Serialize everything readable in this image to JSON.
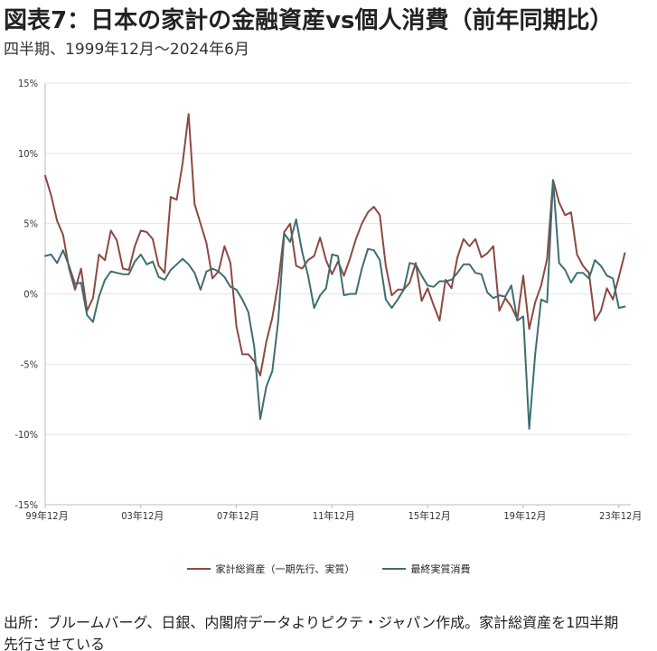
{
  "title": "図表7：日本の家計の金融資産vs個人消費（前年同期比）",
  "subtitle": "四半期、1999年12月～2024年6月",
  "source": "出所：ブルームバーグ、日銀、内閣府データよりピクテ・ジャパン作成。家計総資産を1四半期先行させている",
  "colors": {
    "asset": "#8B4A42",
    "consumption": "#3E6E72",
    "grid": "#e5e5e5"
  },
  "chart_data": {
    "type": "line",
    "x_start": "1999-12",
    "frequency": "quarterly",
    "xtick_labels": [
      "99年12月",
      "03年12月",
      "07年12月",
      "11年12月",
      "15年12月",
      "19年12月",
      "23年12月"
    ],
    "ytick_labels": [
      "15%",
      "10%",
      "5%",
      "0%",
      "-5%",
      "-10%",
      "-15%"
    ],
    "ylim": [
      -15,
      15
    ],
    "yunit": "%",
    "legend_position": "bottom",
    "series": [
      {
        "name": "家計総資産（一期先行、実質）",
        "color": "#8B4A42",
        "values": [
          8.4,
          7.0,
          5.2,
          4.2,
          1.8,
          0.3,
          1.8,
          -1.2,
          -0.3,
          2.8,
          2.4,
          4.5,
          3.8,
          1.8,
          1.7,
          3.4,
          4.5,
          4.4,
          3.9,
          2.0,
          1.5,
          6.9,
          6.7,
          9.3,
          12.8,
          6.4,
          5.0,
          3.6,
          1.1,
          1.6,
          3.4,
          2.2,
          -2.3,
          -4.3,
          -4.3,
          -4.8,
          -5.8,
          -3.4,
          -1.7,
          0.8,
          4.4,
          5.0,
          2.0,
          1.8,
          2.4,
          2.7,
          4.0,
          2.4,
          1.4,
          2.3,
          1.3,
          2.5,
          3.9,
          5.0,
          5.8,
          6.2,
          5.6,
          2.0,
          -0.1,
          0.3,
          0.3,
          0.8,
          2.2,
          -0.5,
          0.4,
          -0.8,
          -1.9,
          1.0,
          0.4,
          2.6,
          3.9,
          3.4,
          3.9,
          2.6,
          2.9,
          3.4,
          -1.2,
          -0.3,
          -0.9,
          -1.8,
          1.3,
          -2.5,
          -0.6,
          0.6,
          2.5,
          8.1,
          6.5,
          5.6,
          5.8,
          2.8,
          2.0,
          1.5,
          -1.9,
          -1.2,
          0.4,
          -0.4,
          1.2,
          2.9
        ]
      },
      {
        "name": "最終実質消費",
        "color": "#3E6E72",
        "values": [
          2.7,
          2.8,
          2.2,
          3.1,
          2.0,
          0.7,
          0.8,
          -1.5,
          -2.0,
          -0.2,
          1.0,
          1.6,
          1.5,
          1.4,
          1.4,
          2.3,
          2.8,
          2.1,
          2.3,
          1.2,
          1.0,
          1.7,
          2.1,
          2.5,
          2.1,
          1.5,
          0.3,
          1.6,
          1.8,
          1.6,
          1.2,
          0.5,
          0.3,
          -0.4,
          -1.3,
          -3.8,
          -8.9,
          -6.6,
          -5.5,
          -1.9,
          4.3,
          3.7,
          5.3,
          3.0,
          1.3,
          -1.0,
          -0.1,
          0.4,
          2.8,
          2.7,
          -0.1,
          0.0,
          0.0,
          1.8,
          3.2,
          3.1,
          2.4,
          -0.4,
          -1.0,
          -0.4,
          0.3,
          2.2,
          2.1,
          1.3,
          0.6,
          0.5,
          0.9,
          0.9,
          1.0,
          1.5,
          2.1,
          2.1,
          1.5,
          1.4,
          0.1,
          -0.3,
          -0.1,
          -0.2,
          0.6,
          -1.9,
          -1.6,
          -9.6,
          -4.3,
          -0.4,
          -0.6,
          8.1,
          2.2,
          1.7,
          0.8,
          1.5,
          1.5,
          1.1,
          2.4,
          2.0,
          1.3,
          1.1,
          -1.0,
          -0.9
        ]
      }
    ]
  }
}
